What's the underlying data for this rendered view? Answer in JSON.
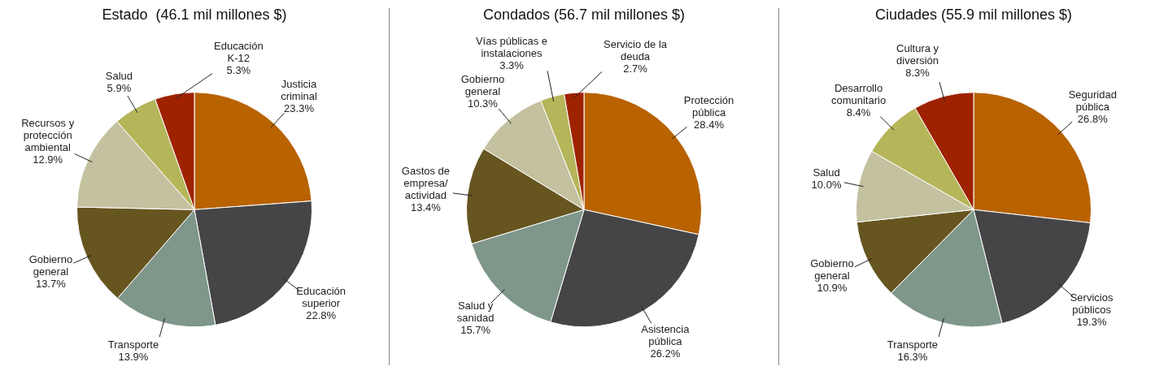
{
  "chart_data": [
    {
      "type": "pie",
      "title": "Estado  (46.1 mil millones $)",
      "categories": [
        "Justicia criminal",
        "Educación superior",
        "Transporte",
        "Gobierno general",
        "Recursos y protección ambiental",
        "Salud",
        "Educación K-12"
      ],
      "values": [
        23.3,
        22.8,
        13.9,
        13.7,
        12.9,
        5.9,
        5.3
      ],
      "colors": [
        "#b86200",
        "#454547",
        "#7f968a",
        "#66551f",
        "#c3c19f",
        "#b5b55a",
        "#9e2200"
      ],
      "value_labels": [
        "23.3%",
        "22.8%",
        "13.9%",
        "13.7%",
        "12.9%",
        "5.9%",
        "5.3%"
      ]
    },
    {
      "type": "pie",
      "title": "Condados (56.7 mil millones $)",
      "categories": [
        "Protección pública",
        "Asistencia pública",
        "Salud y sanidad",
        "Gastos de empresa/ actividad",
        "Gobierno general",
        "Vías públicas e instalaciones",
        "Servicio de la deuda"
      ],
      "values": [
        28.4,
        26.2,
        15.7,
        13.4,
        10.3,
        3.3,
        2.7
      ],
      "colors": [
        "#b86200",
        "#454547",
        "#7f968a",
        "#66551f",
        "#c3c19f",
        "#b5b55a",
        "#9e2200"
      ],
      "value_labels": [
        "28.4%",
        "26.2%",
        "15.7%",
        "13.4%",
        "10.3%",
        "3.3%",
        "2.7%"
      ]
    },
    {
      "type": "pie",
      "title": "Ciudades (55.9 mil millones $)",
      "categories": [
        "Seguridad pública",
        "Servicios públicos",
        "Transporte",
        "Gobierno general",
        "Salud",
        "Desarrollo comunitario",
        "Cultura y diversión"
      ],
      "values": [
        26.8,
        19.3,
        16.3,
        10.9,
        10.0,
        8.4,
        8.3
      ],
      "colors": [
        "#b86200",
        "#454547",
        "#7f968a",
        "#66551f",
        "#c3c19f",
        "#b5b55a",
        "#9e2200"
      ],
      "value_labels": [
        "26.8%",
        "19.3%",
        "16.3%",
        "10.9%",
        "10.0%",
        "8.4%",
        "8.3%"
      ]
    }
  ]
}
